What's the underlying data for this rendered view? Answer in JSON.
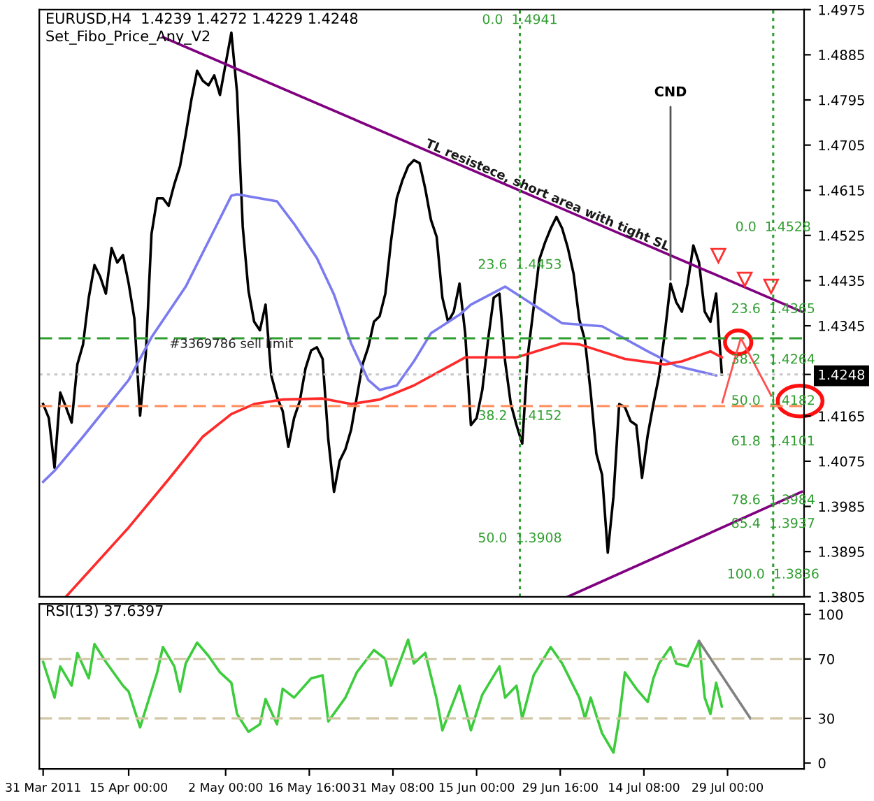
{
  "chart_data": [
    {
      "type": "line",
      "title": "EURUSD,H4  1.4239 1.4272 1.4229 1.4248",
      "subtitle": "Set_Fibo_Price_Any_V2",
      "xlim": [
        "2011-03-30T08:00",
        "2011-08-11T10:00"
      ],
      "ylim": [
        1.3805,
        1.4975
      ],
      "yticks": [
        1.4975,
        1.4885,
        1.4795,
        1.4705,
        1.4615,
        1.4525,
        1.4435,
        1.4345,
        {
          "value": 1.4248,
          "label": "1.4248"
        },
        1.4165,
        1.4075,
        1.3985,
        1.3895,
        1.3805
      ],
      "tick_labels": "y",
      "series": [
        {
          "color": "#000000",
          "x": [
            "2011-03-31",
            "2011-04-01",
            "2011-04-02",
            "2011-04-03",
            "2011-04-04",
            "2011-04-05",
            "2011-04-06",
            "2011-04-07",
            "2011-04-08",
            "2011-04-09",
            "2011-04-10",
            "2011-04-11",
            "2011-04-12",
            "2011-04-13",
            "2011-04-14",
            "2011-04-15",
            "2011-04-16",
            "2011-04-17",
            "2011-04-18",
            "2011-04-19",
            "2011-04-20",
            "2011-04-21",
            "2011-04-22",
            "2011-04-23",
            "2011-04-24",
            "2011-04-25",
            "2011-04-26",
            "2011-04-27",
            "2011-04-28",
            "2011-04-29",
            "2011-04-30",
            "2011-05-01",
            "2011-05-02",
            "2011-05-03",
            "2011-05-04",
            "2011-05-05",
            "2011-05-06",
            "2011-05-07",
            "2011-05-08",
            "2011-05-09",
            "2011-05-10",
            "2011-05-11",
            "2011-05-12",
            "2011-05-13",
            "2011-05-14",
            "2011-05-15",
            "2011-05-16",
            "2011-05-17",
            "2011-05-18",
            "2011-05-19",
            "2011-05-20",
            "2011-05-21",
            "2011-05-22",
            "2011-05-23",
            "2011-05-24",
            "2011-05-25",
            "2011-05-26",
            "2011-05-27",
            "2011-05-28",
            "2011-05-29",
            "2011-05-30",
            "2011-05-31",
            "2011-06-01",
            "2011-06-02",
            "2011-06-03",
            "2011-06-04",
            "2011-06-05",
            "2011-06-06",
            "2011-06-07",
            "2011-06-08",
            "2011-06-09",
            "2011-06-10",
            "2011-06-11",
            "2011-06-12",
            "2011-06-13",
            "2011-06-14",
            "2011-06-15",
            "2011-06-16",
            "2011-06-17",
            "2011-06-18",
            "2011-06-19",
            "2011-06-20",
            "2011-06-21",
            "2011-06-22",
            "2011-06-23",
            "2011-06-24",
            "2011-06-25",
            "2011-06-26",
            "2011-06-27",
            "2011-06-28",
            "2011-06-29",
            "2011-06-30",
            "2011-07-01",
            "2011-07-02",
            "2011-07-03",
            "2011-07-04",
            "2011-07-05",
            "2011-07-06",
            "2011-07-07",
            "2011-07-08",
            "2011-07-09",
            "2011-07-10",
            "2011-07-11",
            "2011-07-12",
            "2011-07-13",
            "2011-07-14",
            "2011-07-15",
            "2011-07-16",
            "2011-07-17",
            "2011-07-18",
            "2011-07-19",
            "2011-07-20",
            "2011-07-21",
            "2011-07-22",
            "2011-07-23",
            "2011-07-24",
            "2011-07-25",
            "2011-07-26",
            "2011-07-27",
            "2011-07-28"
          ],
          "values": [
            1.4189,
            1.4161,
            1.4062,
            1.4212,
            1.4183,
            1.4152,
            1.4268,
            1.4308,
            1.4401,
            1.4466,
            1.4443,
            1.4409,
            1.45,
            1.4471,
            1.4486,
            1.4429,
            1.4359,
            1.4166,
            1.4288,
            1.4528,
            1.4599,
            1.4599,
            1.4584,
            1.4627,
            1.4663,
            1.4726,
            1.4796,
            1.4853,
            1.4833,
            1.4824,
            1.4844,
            1.4805,
            1.4867,
            1.4929,
            1.481,
            1.4542,
            1.4415,
            1.4353,
            1.4336,
            1.4387,
            1.4246,
            1.4203,
            1.4175,
            1.4104,
            1.4161,
            1.4195,
            1.426,
            1.4296,
            1.4302,
            1.4279,
            1.4118,
            1.4014,
            1.4076,
            1.4099,
            1.4138,
            1.4203,
            1.4268,
            1.4302,
            1.4353,
            1.4364,
            1.4409,
            1.4514,
            1.4599,
            1.4635,
            1.4663,
            1.4675,
            1.4669,
            1.4618,
            1.4556,
            1.4522,
            1.4401,
            1.4353,
            1.4373,
            1.4429,
            1.433,
            1.4147,
            1.4161,
            1.4217,
            1.4316,
            1.4401,
            1.4409,
            1.4274,
            1.4189,
            1.4147,
            1.411,
            1.4288,
            1.4381,
            1.4477,
            1.4511,
            1.4539,
            1.4562,
            1.4539,
            1.45,
            1.4449,
            1.4358,
            1.4316,
            1.4212,
            1.409,
            1.4048,
            1.3893,
            1.4005,
            1.4189,
            1.4183,
            1.4155,
            1.4147,
            1.4042,
            1.4127,
            1.4189,
            1.4246,
            1.433,
            1.4429,
            1.4392,
            1.4373,
            1.4429,
            1.4505,
            1.4471,
            1.4373,
            1.4353,
            1.4409,
            1.4248
          ]
        },
        {
          "color": "#7b7bf0",
          "x": [
            "2011-03-31",
            "2011-04-02",
            "2011-04-07",
            "2011-04-15",
            "2011-04-19",
            "2011-04-25",
            "2011-04-30",
            "2011-05-03",
            "2011-05-04",
            "2011-05-11",
            "2011-05-14",
            "2011-05-18",
            "2011-05-21",
            "2011-05-24",
            "2011-05-27",
            "2011-05-29",
            "2011-06-01",
            "2011-06-04",
            "2011-06-07",
            "2011-06-12",
            "2011-06-14",
            "2011-06-20",
            "2011-06-30",
            "2011-07-07",
            "2011-07-15",
            "2011-07-20",
            "2011-07-27"
          ],
          "values": [
            1.4034,
            1.4056,
            1.4124,
            1.4237,
            1.4322,
            1.4423,
            1.4536,
            1.4604,
            1.4607,
            1.4593,
            1.4548,
            1.448,
            1.4407,
            1.431,
            1.4237,
            1.4217,
            1.4226,
            1.4274,
            1.433,
            1.4367,
            1.4387,
            1.4423,
            1.435,
            1.4344,
            1.4294,
            1.4265,
            1.4246
          ]
        },
        {
          "color": "#ff2a2a",
          "x": [
            "2011-04-04",
            "2011-04-15",
            "2011-04-22",
            "2011-04-28",
            "2011-05-03",
            "2011-05-07",
            "2011-05-12",
            "2011-05-19",
            "2011-05-24",
            "2011-05-29",
            "2011-06-04",
            "2011-06-13",
            "2011-06-22",
            "2011-06-30",
            "2011-07-03",
            "2011-07-11",
            "2011-07-18",
            "2011-07-21",
            "2011-07-26",
            "2011-07-28"
          ],
          "values": [
            1.3805,
            1.3943,
            1.4039,
            1.4124,
            1.4169,
            1.4189,
            1.4198,
            1.42,
            1.4189,
            1.4198,
            1.4226,
            1.4282,
            1.4282,
            1.431,
            1.4308,
            1.4279,
            1.4268,
            1.4274,
            1.4294,
            1.4282
          ]
        },
        {
          "color": "#800080",
          "x": [
            "2011-04-21",
            "2011-08-11"
          ],
          "values": [
            1.492,
            1.4373
          ]
        },
        {
          "color": "#800080",
          "x": [
            "2011-07-01",
            "2011-08-11"
          ],
          "values": [
            1.3805,
            1.4014
          ]
        }
      ],
      "ref_lines": [
        {
          "axis": "y",
          "value": 1.432,
          "label": "#3369786 sell limit",
          "color": "#2e9e2e",
          "line_style": "dashed"
        },
        {
          "axis": "y",
          "value": 1.4248,
          "color": "#c8c8c8",
          "line_style": "dotted"
        },
        {
          "axis": "y",
          "value": 1.4185,
          "color": "#ff8c5a",
          "line_style": "dashed"
        },
        {
          "axis": "x",
          "value": "2011-06-22T14:00",
          "color": "#2e9e2e",
          "line_style": "dotted"
        },
        {
          "axis": "x",
          "value": "2011-08-06",
          "color": "#2e9e2e",
          "line_style": "dotted"
        }
      ],
      "annotations": [
        {
          "text": "TL resistece, short area with tight SL",
          "x": "2011-06-27",
          "y": 1.4593
        },
        {
          "text": "CND",
          "x": "2011-07-19",
          "y": 1.4429
        },
        {
          "text": "0.0  1.4941",
          "x": "2011-06-22T14:00",
          "y": 1.4941
        },
        {
          "text": "23.6  1.4453",
          "x": "2011-06-22T14:00",
          "y": 1.4453
        },
        {
          "text": "38.2  1.4152",
          "x": "2011-06-22T14:00",
          "y": 1.4152
        },
        {
          "text": "50.0  1.3908",
          "x": "2011-06-22T14:00",
          "y": 1.3908
        },
        {
          "text": "0.0  1.4528",
          "x": "2011-08-06",
          "y": 1.4528
        },
        {
          "text": "23.6  1.4365",
          "x": "2011-08-06",
          "y": 1.4365
        },
        {
          "text": "38.2  1.4264",
          "x": "2011-08-06",
          "y": 1.4264
        },
        {
          "text": "50.0  1.4182",
          "x": "2011-08-06",
          "y": 1.4182
        },
        {
          "text": "61.8  1.4101",
          "x": "2011-08-06",
          "y": 1.4101
        },
        {
          "text": "78.6  1.3984",
          "x": "2011-08-06",
          "y": 1.3984
        },
        {
          "text": "85.4  1.3937",
          "x": "2011-08-06",
          "y": 1.3937
        },
        {
          "text": "100.0  1.3836",
          "x": "2011-08-06",
          "y": 1.3836
        }
      ]
    },
    {
      "type": "line",
      "title": "RSI(13) 37.6397",
      "xlim": [
        "2011-03-30T08:00",
        "2011-08-11T10:00"
      ],
      "ylim": [
        -4,
        107
      ],
      "yticks": [
        0,
        30,
        70,
        100
      ],
      "xticks": [
        {
          "value": "2011-03-31T00:00",
          "label": "31 Mar 2011"
        },
        {
          "value": "2011-04-15T00:00",
          "label": "15 Apr 00:00"
        },
        {
          "value": "2011-05-02T00:00",
          "label": "2 May 00:00"
        },
        {
          "value": "2011-05-16T16:00",
          "label": "16 May 16:00"
        },
        {
          "value": "2011-05-31T08:00",
          "label": "31 May 08:00"
        },
        {
          "value": "2011-06-15T00:00",
          "label": "15 Jun 00:00"
        },
        {
          "value": "2011-06-29T16:00",
          "label": "29 Jun 16:00"
        },
        {
          "value": "2011-07-14T08:00",
          "label": "14 Jul 08:00"
        },
        {
          "value": "2011-07-29T00:00",
          "label": "29 Jul 00:00"
        }
      ],
      "series": [
        {
          "color": "#3ccc3c",
          "x": [
            "2011-03-31",
            "2011-04-02",
            "2011-04-03",
            "2011-04-05",
            "2011-04-06",
            "2011-04-08",
            "2011-04-09",
            "2011-04-11",
            "2011-04-14",
            "2011-04-15",
            "2011-04-17",
            "2011-04-20",
            "2011-04-21",
            "2011-04-23",
            "2011-04-24",
            "2011-04-25",
            "2011-04-27",
            "2011-04-29",
            "2011-05-01",
            "2011-05-03",
            "2011-05-04",
            "2011-05-06",
            "2011-05-08",
            "2011-05-09",
            "2011-05-11",
            "2011-05-12",
            "2011-05-14",
            "2011-05-17",
            "2011-05-19",
            "2011-05-20",
            "2011-05-23",
            "2011-05-25",
            "2011-05-28",
            "2011-05-30",
            "2011-05-31",
            "2011-06-03",
            "2011-06-04",
            "2011-06-06",
            "2011-06-08",
            "2011-06-09",
            "2011-06-12",
            "2011-06-14",
            "2011-06-16",
            "2011-06-19",
            "2011-06-20",
            "2011-06-22",
            "2011-06-23",
            "2011-06-25",
            "2011-06-28",
            "2011-06-30",
            "2011-07-03",
            "2011-07-04",
            "2011-07-05",
            "2011-07-07",
            "2011-07-09",
            "2011-07-10",
            "2011-07-11",
            "2011-07-13",
            "2011-07-15",
            "2011-07-16",
            "2011-07-17",
            "2011-07-19",
            "2011-07-20",
            "2011-07-22",
            "2011-07-24",
            "2011-07-25",
            "2011-07-26",
            "2011-07-27",
            "2011-07-28"
          ],
          "values": [
            68,
            44,
            65,
            52,
            74,
            57,
            80,
            68,
            52,
            48,
            24,
            61,
            78,
            65,
            48,
            67,
            81,
            72,
            61,
            54,
            33,
            21,
            26,
            43,
            26,
            50,
            44,
            57,
            59,
            28,
            44,
            61,
            76,
            70,
            52,
            83,
            67,
            74,
            43,
            22,
            52,
            22,
            46,
            65,
            44,
            52,
            30,
            59,
            78,
            67,
            44,
            30,
            44,
            20,
            7,
            30,
            61,
            50,
            41,
            57,
            67,
            78,
            67,
            65,
            82,
            44,
            33,
            54,
            38
          ]
        },
        {
          "color": "#808080",
          "x": [
            "2011-07-24",
            "2011-08-02"
          ],
          "values": [
            82,
            30
          ]
        }
      ],
      "ref_lines": [
        {
          "axis": "y",
          "value": 70,
          "color": "#d2c8a8",
          "line_style": "dashed"
        },
        {
          "axis": "y",
          "value": 30,
          "color": "#d2c8a8",
          "line_style": "dashed"
        }
      ]
    }
  ]
}
